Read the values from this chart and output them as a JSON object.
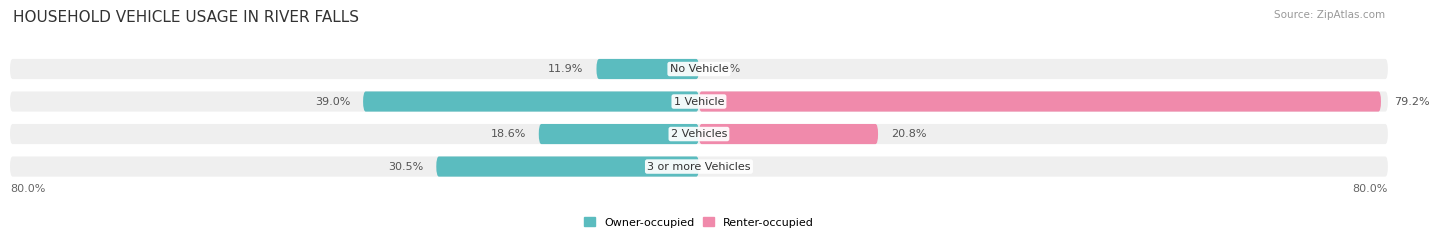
{
  "title": "HOUSEHOLD VEHICLE USAGE IN RIVER FALLS",
  "source": "Source: ZipAtlas.com",
  "categories": [
    "No Vehicle",
    "1 Vehicle",
    "2 Vehicles",
    "3 or more Vehicles"
  ],
  "owner_values": [
    11.9,
    39.0,
    18.6,
    30.5
  ],
  "renter_values": [
    0.0,
    79.2,
    20.8,
    0.0
  ],
  "owner_color": "#5bbcbf",
  "renter_color": "#f08aab",
  "owner_label": "Owner-occupied",
  "renter_label": "Renter-occupied",
  "axis_max": 80.0,
  "axis_left_label": "80.0%",
  "axis_right_label": "80.0%",
  "bar_height": 0.62,
  "background_color": "#ffffff",
  "bar_bg_color": "#efefef",
  "title_fontsize": 11,
  "source_fontsize": 7.5,
  "label_fontsize": 8.0,
  "category_fontsize": 8.0
}
